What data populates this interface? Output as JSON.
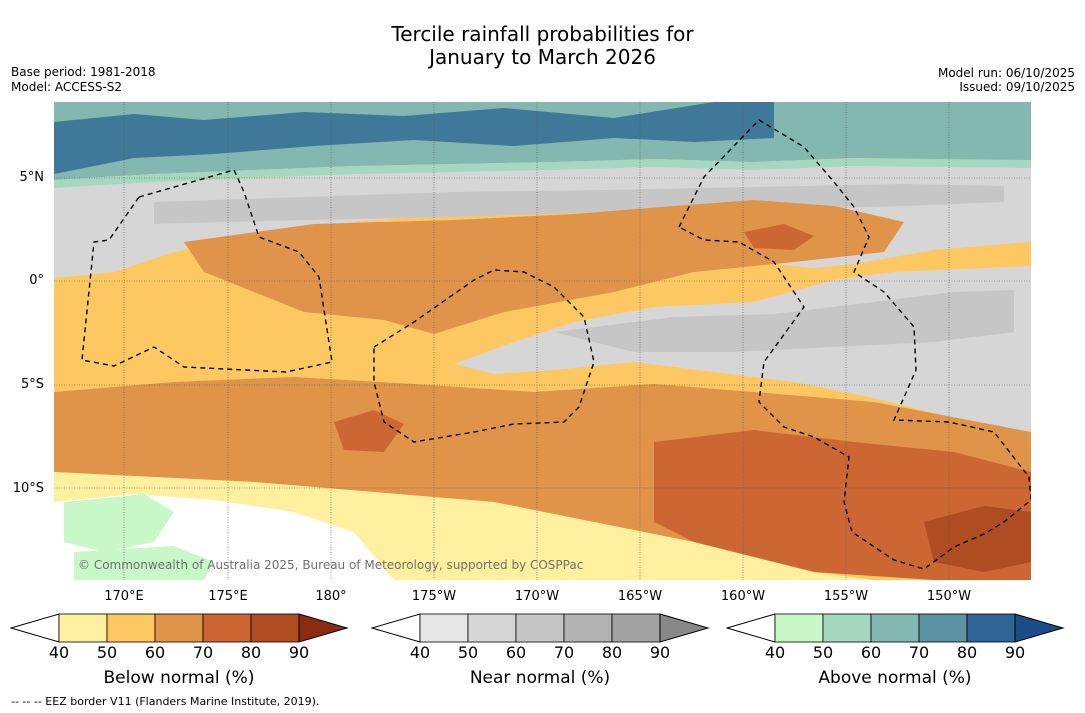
{
  "title": {
    "line1": "Tercile rainfall probabilities for",
    "line2": "January to March 2026"
  },
  "meta_left": {
    "base_period": "Base period: 1981-2018",
    "model": "Model: ACCESS-S2"
  },
  "meta_right": {
    "model_run": "Model run: 06/10/2025",
    "issued": "Issued: 09/10/2025"
  },
  "map": {
    "latitude_labels": [
      "5°N",
      "0°",
      "5°S",
      "10°S"
    ],
    "longitude_labels": [
      "170°E",
      "175°E",
      "180°",
      "175°W",
      "170°W",
      "165°W",
      "160°W",
      "155°W",
      "150°W"
    ],
    "credit": "© Commonwealth of Australia 2025, Bureau of Meteorology, supported by COSPPac",
    "colors": {
      "below": [
        "#fff0a0",
        "#fdc862",
        "#e0944a",
        "#cc6633",
        "#b04c22",
        "#8b2c10"
      ],
      "near": [
        "#e6e6e6",
        "#d6d6d6",
        "#c6c6c6",
        "#b2b2b2",
        "#a2a2a2",
        "#888888"
      ],
      "above": [
        "#c8f8c8",
        "#a4d8c0",
        "#82b8b0",
        "#5b94a0",
        "#2f6496",
        "#1a4c88"
      ]
    }
  },
  "colorbars": [
    {
      "id": "below",
      "label": "Below normal (%)",
      "ticks": [
        "40",
        "50",
        "60",
        "70",
        "80",
        "90"
      ]
    },
    {
      "id": "near",
      "label": "Near normal (%)",
      "ticks": [
        "40",
        "50",
        "60",
        "70",
        "80",
        "90"
      ]
    },
    {
      "id": "above",
      "label": "Above normal (%)",
      "ticks": [
        "40",
        "50",
        "60",
        "70",
        "80",
        "90"
      ]
    }
  ],
  "footer": {
    "legend": "--  --  -- EEZ border V11 (Flanders Marine Institute, 2019)."
  }
}
